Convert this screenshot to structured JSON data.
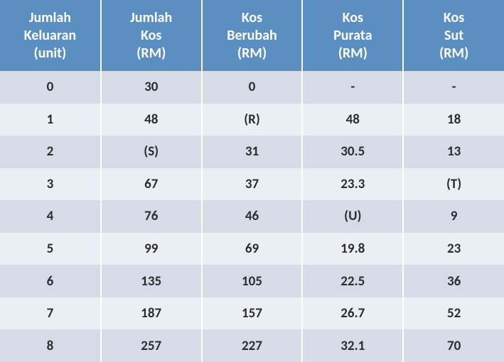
{
  "table": {
    "type": "table",
    "colors": {
      "header_bg": "#5b8ec1",
      "header_text": "#ffffff",
      "row_band_a": "#d5dce8",
      "row_band_b": "#eaeef5",
      "cell_text": "#2c2c2c",
      "border": "#ffffff"
    },
    "typography": {
      "header_fontsize_pt": 15,
      "cell_fontsize_pt": 14,
      "font_family": "Calibri",
      "header_weight": "bold",
      "cell_weight": "bold"
    },
    "columns": [
      {
        "line1": "Jumlah",
        "line2": "Keluaran",
        "line3": "(unit)"
      },
      {
        "line1": "Jumlah",
        "line2": "Kos",
        "line3": "(RM)"
      },
      {
        "line1": "Kos",
        "line2": "Berubah",
        "line3": "(RM)"
      },
      {
        "line1": "Kos",
        "line2": "Purata",
        "line3": "(RM)"
      },
      {
        "line1": "Kos",
        "line2": "Sut",
        "line3": "(RM)"
      }
    ],
    "rows": [
      [
        "0",
        "30",
        "0",
        "-",
        "-"
      ],
      [
        "1",
        "48",
        "(R)",
        "48",
        "18"
      ],
      [
        "2",
        "(S)",
        "31",
        "30.5",
        "13"
      ],
      [
        "3",
        "67",
        "37",
        "23.3",
        "(T)"
      ],
      [
        "4",
        "76",
        "46",
        "(U)",
        "9"
      ],
      [
        "5",
        "99",
        "69",
        "19.8",
        "23"
      ],
      [
        "6",
        "135",
        "105",
        "22.5",
        "36"
      ],
      [
        "7",
        "187",
        "157",
        "26.7",
        "52"
      ],
      [
        "8",
        "257",
        "227",
        "32.1",
        "70"
      ]
    ]
  }
}
